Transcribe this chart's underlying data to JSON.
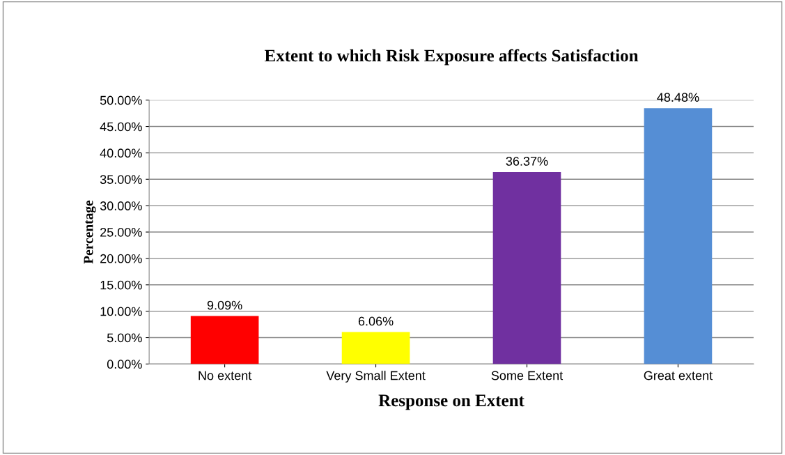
{
  "chart_data": {
    "type": "bar",
    "title": "Extent to which Risk Exposure affects Satisfaction",
    "xlabel": "Response on Extent",
    "ylabel": "Percentage",
    "categories": [
      "No extent",
      "Very Small Extent",
      "Some Extent",
      "Great extent"
    ],
    "values": [
      9.09,
      6.06,
      36.37,
      48.48
    ],
    "value_labels": [
      "9.09%",
      "6.06%",
      "36.37%",
      "48.48%"
    ],
    "colors": [
      "#ff0000",
      "#ffff00",
      "#7030a0",
      "#558ed5"
    ],
    "ylim": [
      0,
      50
    ],
    "yticks": [
      {
        "value": 0,
        "label": "0.00%"
      },
      {
        "value": 5,
        "label": "5.00%"
      },
      {
        "value": 10,
        "label": "10.00%"
      },
      {
        "value": 15,
        "label": "15.00%"
      },
      {
        "value": 20,
        "label": "20.00%"
      },
      {
        "value": 25,
        "label": "25.00%"
      },
      {
        "value": 30,
        "label": "30.00%"
      },
      {
        "value": 35,
        "label": "35.00%"
      },
      {
        "value": 40,
        "label": "40.00%"
      },
      {
        "value": 45,
        "label": "45.00%"
      },
      {
        "value": 50,
        "label": "50.00%"
      }
    ],
    "grid": "y",
    "legend": false
  }
}
